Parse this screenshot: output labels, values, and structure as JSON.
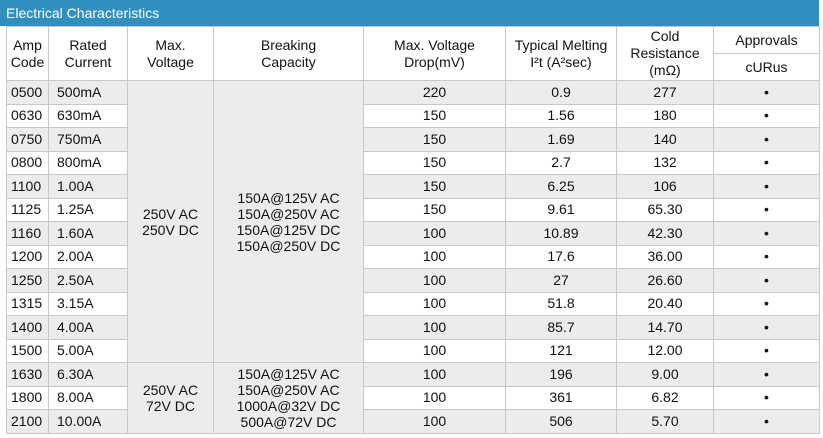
{
  "title": "Electrical Characteristics",
  "headers": {
    "amp_code": [
      "Amp",
      "Code"
    ],
    "rated_current": [
      "Rated",
      "Current"
    ],
    "max_voltage": [
      "Max.",
      "Voltage"
    ],
    "breaking_capacity": [
      "Breaking",
      "Capacity"
    ],
    "voltage_drop": [
      "Max. Voltage",
      "Drop(mV)"
    ],
    "melting": [
      "Typical Melting",
      "I²t (A²sec)"
    ],
    "cold_resistance": [
      "Cold",
      "Resistance",
      "(mΩ)"
    ],
    "approvals": "Approvals",
    "curus": "cURus"
  },
  "voltage_group_1": [
    "250V AC",
    "250V DC"
  ],
  "voltage_group_2": [
    "250V AC",
    "72V DC"
  ],
  "breaking_group_1": [
    "150A@125V AC",
    "150A@250V AC",
    "150A@125V DC",
    "150A@250V DC"
  ],
  "breaking_group_2": [
    "150A@125V AC",
    "150A@250V AC",
    "1000A@32V DC",
    "500A@72V DC"
  ],
  "rows": [
    {
      "code": "0500",
      "current": "500mA",
      "drop": "220",
      "melting": "0.9",
      "resistance": "277",
      "approval": "•"
    },
    {
      "code": "0630",
      "current": "630mA",
      "drop": "150",
      "melting": "1.56",
      "resistance": "180",
      "approval": "•"
    },
    {
      "code": "0750",
      "current": "750mA",
      "drop": "150",
      "melting": "1.69",
      "resistance": "140",
      "approval": "•"
    },
    {
      "code": "0800",
      "current": "800mA",
      "drop": "150",
      "melting": "2.7",
      "resistance": "132",
      "approval": "•"
    },
    {
      "code": "1100",
      "current": "1.00A",
      "drop": "150",
      "melting": "6.25",
      "resistance": "106",
      "approval": "•"
    },
    {
      "code": "1125",
      "current": "1.25A",
      "drop": "150",
      "melting": "9.61",
      "resistance": "65.30",
      "approval": "•"
    },
    {
      "code": "1160",
      "current": "1.60A",
      "drop": "100",
      "melting": "10.89",
      "resistance": "42.30",
      "approval": "•"
    },
    {
      "code": "1200",
      "current": "2.00A",
      "drop": "100",
      "melting": "17.6",
      "resistance": "36.00",
      "approval": "•"
    },
    {
      "code": "1250",
      "current": "2.50A",
      "drop": "100",
      "melting": "27",
      "resistance": "26.60",
      "approval": "•"
    },
    {
      "code": "1315",
      "current": "3.15A",
      "drop": "100",
      "melting": "51.8",
      "resistance": "20.40",
      "approval": "•"
    },
    {
      "code": "1400",
      "current": "4.00A",
      "drop": "100",
      "melting": "85.7",
      "resistance": "14.70",
      "approval": "•"
    },
    {
      "code": "1500",
      "current": "5.00A",
      "drop": "100",
      "melting": "121",
      "resistance": "12.00",
      "approval": "•"
    },
    {
      "code": "1630",
      "current": "6.30A",
      "drop": "100",
      "melting": "196",
      "resistance": "9.00",
      "approval": "•"
    },
    {
      "code": "1800",
      "current": "8.00A",
      "drop": "100",
      "melting": "361",
      "resistance": "6.82",
      "approval": "•"
    },
    {
      "code": "2100",
      "current": "10.00A",
      "drop": "100",
      "melting": "506",
      "resistance": "5.70",
      "approval": "•"
    }
  ]
}
